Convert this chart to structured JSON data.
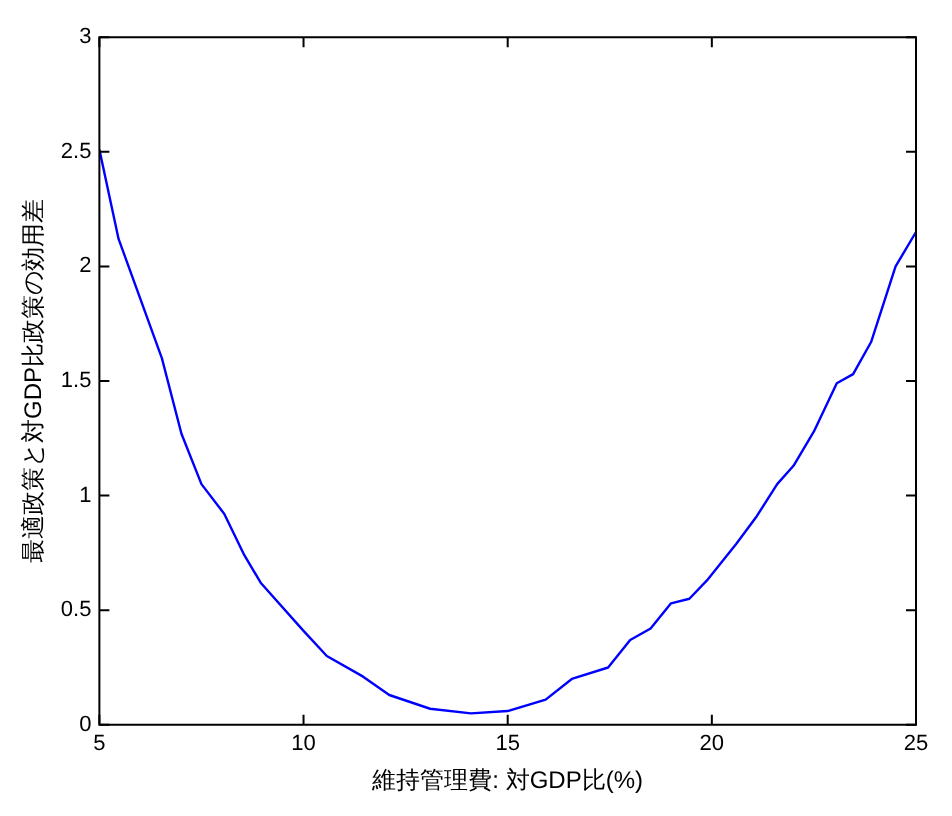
{
  "chart_data": {
    "type": "line",
    "xlabel": "維持管理費: 対GDP比(%)",
    "ylabel": "最適政策と対GDP比政策の効用差",
    "x": [
      5,
      5.47,
      6.53,
      7.01,
      7.5,
      8.06,
      8.55,
      8.95,
      10,
      10.57,
      11.46,
      12.1,
      13.1,
      14.1,
      15,
      15.93,
      16.57,
      17.46,
      18,
      18.5,
      19,
      19.45,
      19.88,
      20.6,
      21.1,
      21.6,
      22,
      22.5,
      23.06,
      23.46,
      23.9,
      24.5,
      25
    ],
    "series": [
      {
        "color": "#0000ff",
        "values": [
          2.51,
          2.12,
          1.6,
          1.27,
          1.05,
          0.92,
          0.74,
          0.62,
          0.41,
          0.3,
          0.21,
          0.13,
          0.07,
          0.05,
          0.06,
          0.11,
          0.2,
          0.25,
          0.37,
          0.42,
          0.53,
          0.55,
          0.63,
          0.79,
          0.91,
          1.05,
          1.13,
          1.28,
          1.49,
          1.53,
          1.67,
          2,
          2.15
        ]
      }
    ],
    "xlim": [
      5,
      25
    ],
    "xticks": [
      5,
      10,
      15,
      20,
      25
    ],
    "ylim": [
      0,
      3
    ],
    "yticks": [
      0,
      0.5,
      1,
      1.5,
      2,
      2.5,
      3
    ],
    "grid": false,
    "legend": false,
    "marker": "none",
    "line_style": "solid"
  }
}
